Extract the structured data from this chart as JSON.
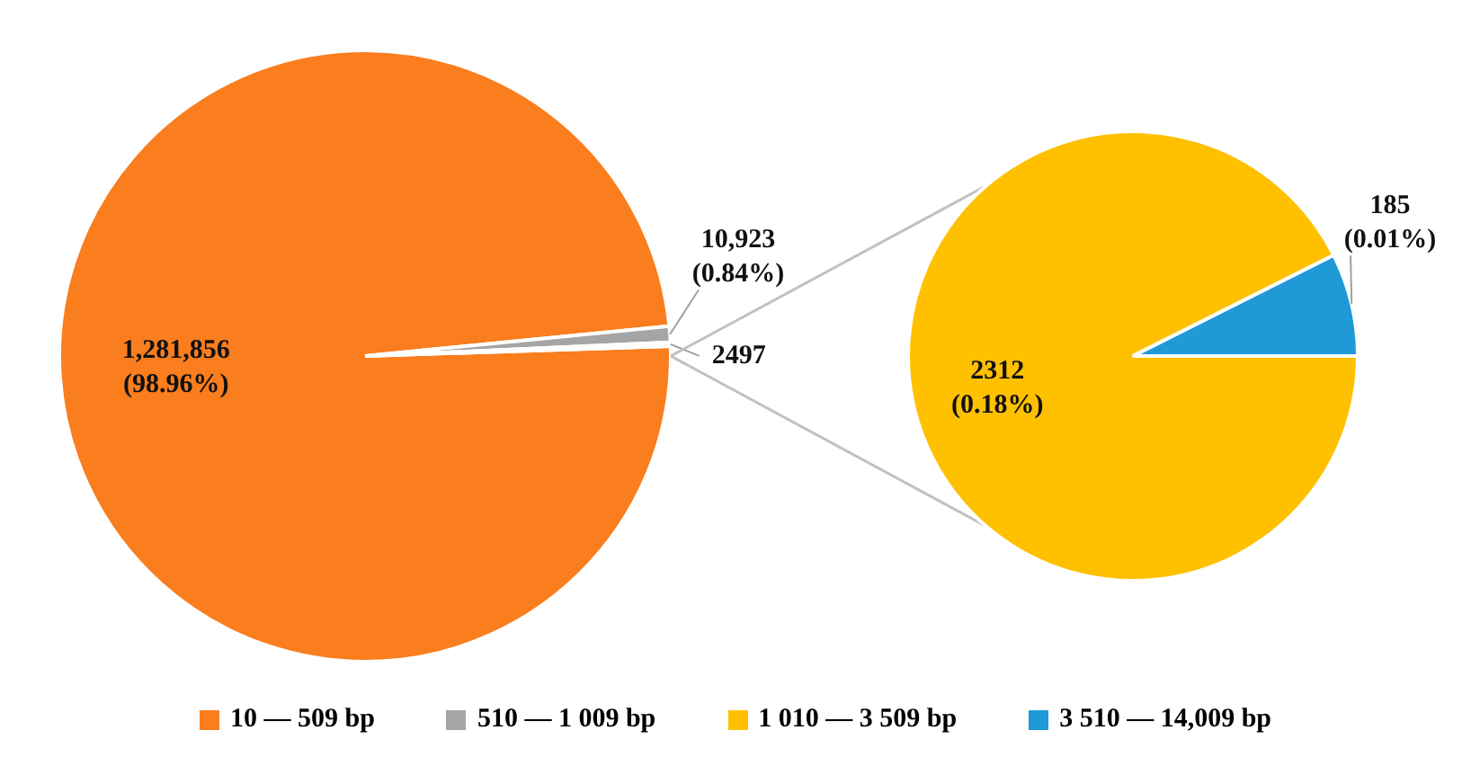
{
  "chart_data": [
    {
      "type": "pie",
      "categories": [
        "10 — 509 bp",
        "510 — 1 009 bp",
        null
      ],
      "values": [
        1281856,
        10923,
        2497
      ],
      "colors": [
        "#fa7d1e",
        "#a5a5a5",
        "#d9d9d9"
      ],
      "value_labels": [
        "1,281,856\n(98.96%)",
        "10,923\n(0.84%)",
        "2497"
      ],
      "legend": "bottom"
    },
    {
      "type": "pie",
      "categories": [
        "1 010 — 3 509 bp",
        "3 510 — 14,009 bp"
      ],
      "values": [
        2312,
        185
      ],
      "colors": [
        "#ffc000",
        "#1f9ad6"
      ],
      "value_labels": [
        "2312\n(0.18%)",
        "185\n(0.01%)"
      ],
      "legend": "bottom"
    }
  ]
}
